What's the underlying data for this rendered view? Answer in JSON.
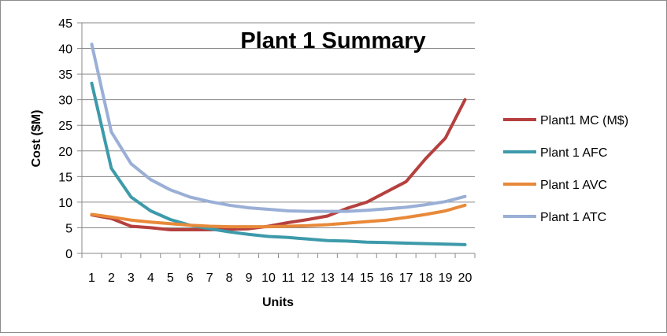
{
  "chart_data": {
    "type": "line",
    "title": "Plant 1 Summary",
    "xlabel": "Units",
    "ylabel": "Cost ($M)",
    "ylim": [
      0,
      45
    ],
    "yticks": [
      0,
      5,
      10,
      15,
      20,
      25,
      30,
      35,
      40,
      45
    ],
    "x": [
      1,
      2,
      3,
      4,
      5,
      6,
      7,
      8,
      9,
      10,
      11,
      12,
      13,
      14,
      15,
      16,
      17,
      18,
      19,
      20
    ],
    "grid": "horizontal",
    "legend_position": "right",
    "series": [
      {
        "name": "Plant1 MC (M$)",
        "color": "#b5403e",
        "values": [
          7.5,
          6.8,
          5.3,
          5.0,
          4.6,
          4.6,
          4.6,
          4.7,
          4.8,
          5.3,
          6.0,
          6.6,
          7.3,
          8.8,
          10.0,
          12.0,
          14.0,
          18.5,
          22.5,
          30.0
        ]
      },
      {
        "name": "Plant 1 AFC",
        "color": "#3d9aaa",
        "values": [
          33.2,
          16.6,
          11.0,
          8.3,
          6.6,
          5.5,
          4.8,
          4.2,
          3.7,
          3.3,
          3.1,
          2.8,
          2.5,
          2.4,
          2.2,
          2.1,
          2.0,
          1.9,
          1.8,
          1.7
        ]
      },
      {
        "name": "Plant 1 AVC",
        "color": "#e8893a",
        "values": [
          7.6,
          7.1,
          6.5,
          6.1,
          5.8,
          5.5,
          5.3,
          5.2,
          5.2,
          5.2,
          5.3,
          5.4,
          5.6,
          5.9,
          6.2,
          6.5,
          7.0,
          7.6,
          8.3,
          9.4
        ]
      },
      {
        "name": "Plant 1 ATC",
        "color": "#9aafd6",
        "values": [
          40.8,
          23.7,
          17.5,
          14.4,
          12.4,
          11.0,
          10.1,
          9.4,
          8.9,
          8.6,
          8.3,
          8.2,
          8.2,
          8.2,
          8.4,
          8.7,
          9.0,
          9.5,
          10.1,
          11.1
        ]
      }
    ]
  }
}
